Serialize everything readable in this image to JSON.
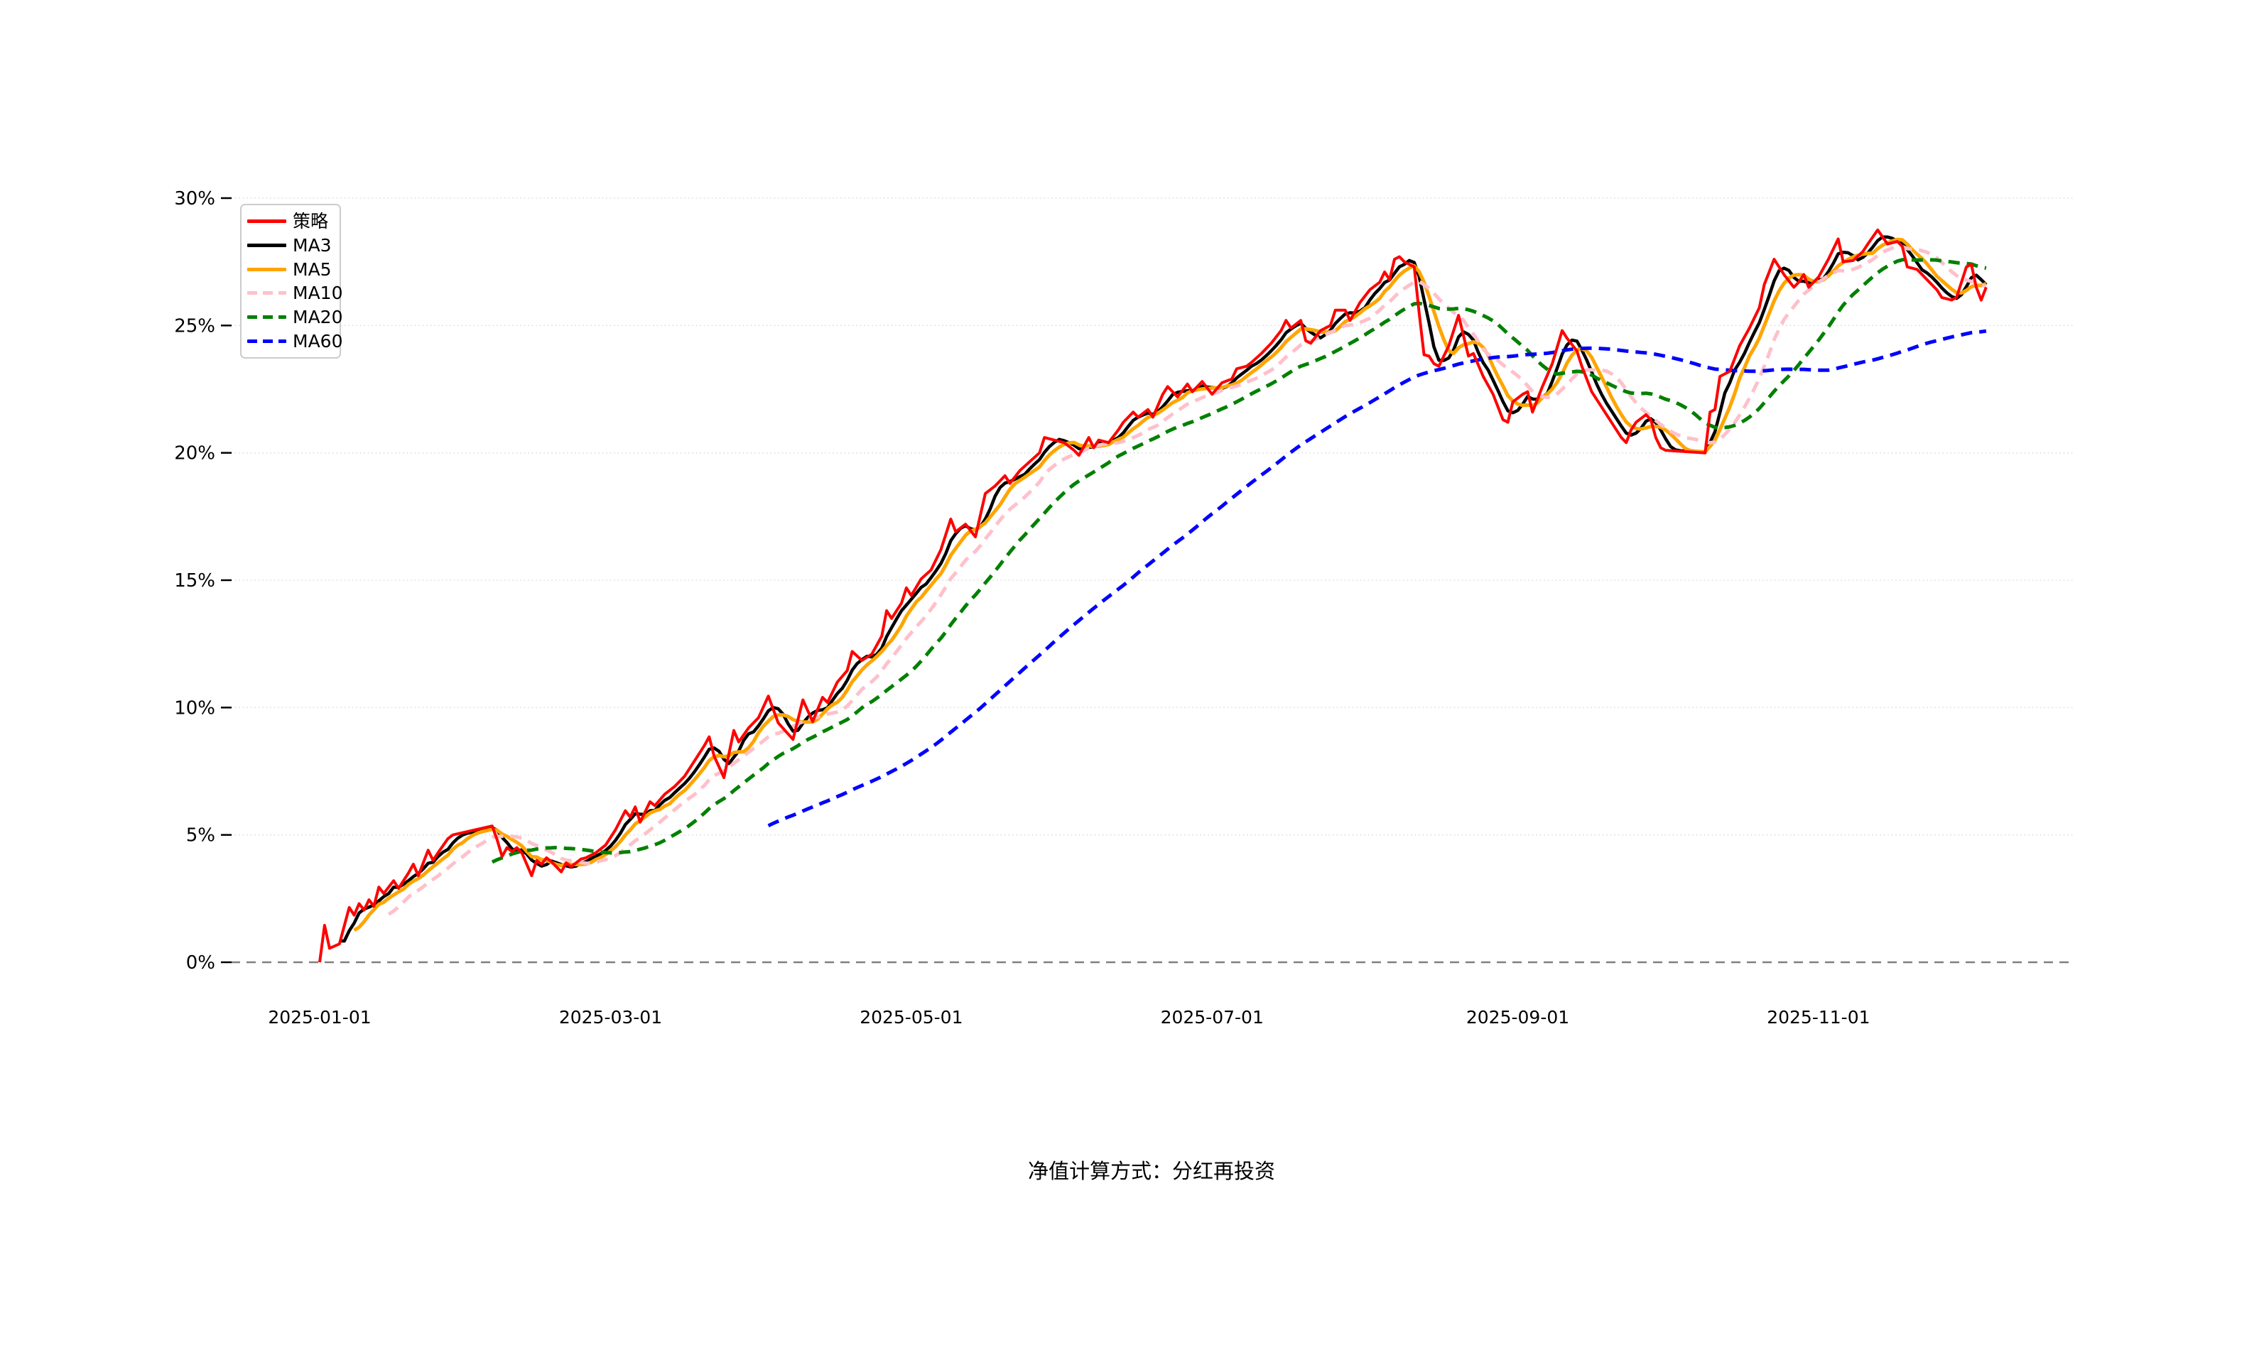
{
  "chart": {
    "caption": "净值计算方式：分红再投资",
    "background": "#ffffff",
    "grid_color": "#e3e3e3",
    "zero_line_color": "#808080",
    "tick_color": "#000000",
    "legend": [
      {
        "label": "策略",
        "color": "#ff0000",
        "dash": "solid"
      },
      {
        "label": "MA3",
        "color": "#000000",
        "dash": "solid"
      },
      {
        "label": "MA5",
        "color": "#ffa500",
        "dash": "solid"
      },
      {
        "label": "MA10",
        "color": "#ffc0cb",
        "dash": "dashed"
      },
      {
        "label": "MA20",
        "color": "#008000",
        "dash": "dashed"
      },
      {
        "label": "MA60",
        "color": "#0000ff",
        "dash": "dashed"
      }
    ],
    "chart_data": {
      "type": "line",
      "title": "",
      "xlabel": "",
      "ylabel": "",
      "grid": true,
      "legend_position": "upper-left",
      "x_axis": {
        "start_date": "2025-01-01",
        "tick_labels": [
          "2025-01-01",
          "2025-03-01",
          "2025-05-01",
          "2025-07-01",
          "2025-09-01",
          "2025-11-01"
        ],
        "tick_day_offsets": [
          0,
          59,
          120,
          181,
          243,
          304
        ],
        "last_day_offset": 338
      },
      "y_axis": {
        "tick_labels": [
          "0%",
          "5%",
          "10%",
          "15%",
          "20%",
          "25%",
          "30%"
        ],
        "tick_values": [
          0,
          5,
          10,
          15,
          20,
          25,
          30
        ],
        "range": [
          0,
          30
        ],
        "unit": "percent"
      },
      "series": [
        {
          "name": "策略",
          "color": "#ff0000",
          "style": "solid",
          "width": 4,
          "kind": "raw",
          "points_day_value": [
            [
              0,
              0
            ],
            [
              1,
              1.45
            ],
            [
              2,
              0.55
            ],
            [
              4,
              0.72
            ],
            [
              6,
              2.15
            ],
            [
              7,
              1.85
            ],
            [
              8,
              2.3
            ],
            [
              9,
              2.05
            ],
            [
              10,
              2.45
            ],
            [
              11,
              2.2
            ],
            [
              12,
              2.95
            ],
            [
              13,
              2.7
            ],
            [
              15,
              3.2
            ],
            [
              16,
              2.9
            ],
            [
              18,
              3.5
            ],
            [
              19,
              3.85
            ],
            [
              20,
              3.4
            ],
            [
              22,
              4.4
            ],
            [
              23,
              4.0
            ],
            [
              24,
              4.3
            ],
            [
              26,
              4.85
            ],
            [
              27,
              5.0
            ],
            [
              35,
              5.35
            ],
            [
              36,
              4.8
            ],
            [
              37,
              4.15
            ],
            [
              38,
              4.5
            ],
            [
              39,
              4.35
            ],
            [
              40,
              4.5
            ],
            [
              41,
              4.3
            ],
            [
              43,
              3.4
            ],
            [
              44,
              4.0
            ],
            [
              45,
              3.85
            ],
            [
              46,
              4.1
            ],
            [
              47,
              3.95
            ],
            [
              49,
              3.55
            ],
            [
              50,
              3.9
            ],
            [
              51,
              3.75
            ],
            [
              53,
              4.05
            ],
            [
              54,
              4.1
            ],
            [
              56,
              4.3
            ],
            [
              58,
              4.6
            ],
            [
              60,
              5.2
            ],
            [
              62,
              5.95
            ],
            [
              63,
              5.7
            ],
            [
              64,
              6.1
            ],
            [
              65,
              5.5
            ],
            [
              67,
              6.3
            ],
            [
              68,
              6.15
            ],
            [
              70,
              6.6
            ],
            [
              72,
              6.9
            ],
            [
              74,
              7.3
            ],
            [
              76,
              7.9
            ],
            [
              78,
              8.5
            ],
            [
              79,
              8.85
            ],
            [
              80,
              8.1
            ],
            [
              82,
              7.25
            ],
            [
              84,
              9.1
            ],
            [
              85,
              8.65
            ],
            [
              87,
              9.2
            ],
            [
              89,
              9.6
            ],
            [
              91,
              10.45
            ],
            [
              93,
              9.4
            ],
            [
              96,
              8.75
            ],
            [
              98,
              10.3
            ],
            [
              100,
              9.45
            ],
            [
              102,
              10.4
            ],
            [
              103,
              10.2
            ],
            [
              105,
              11.0
            ],
            [
              107,
              11.45
            ],
            [
              108,
              12.2
            ],
            [
              110,
              11.85
            ],
            [
              112,
              12.1
            ],
            [
              114,
              12.8
            ],
            [
              115,
              13.8
            ],
            [
              116,
              13.5
            ],
            [
              118,
              14.1
            ],
            [
              119,
              14.7
            ],
            [
              120,
              14.4
            ],
            [
              122,
              15.05
            ],
            [
              124,
              15.4
            ],
            [
              126,
              16.2
            ],
            [
              128,
              17.4
            ],
            [
              129,
              16.9
            ],
            [
              131,
              17.2
            ],
            [
              133,
              16.7
            ],
            [
              135,
              18.4
            ],
            [
              137,
              18.7
            ],
            [
              139,
              19.1
            ],
            [
              140,
              18.8
            ],
            [
              142,
              19.3
            ],
            [
              144,
              19.65
            ],
            [
              146,
              20.0
            ],
            [
              147,
              20.6
            ],
            [
              149,
              20.5
            ],
            [
              151,
              20.4
            ],
            [
              153,
              20.1
            ],
            [
              154,
              19.9
            ],
            [
              156,
              20.6
            ],
            [
              157,
              20.2
            ],
            [
              158,
              20.5
            ],
            [
              160,
              20.4
            ],
            [
              162,
              20.9
            ],
            [
              163,
              21.2
            ],
            [
              165,
              21.6
            ],
            [
              166,
              21.4
            ],
            [
              168,
              21.7
            ],
            [
              169,
              21.4
            ],
            [
              171,
              22.3
            ],
            [
              172,
              22.6
            ],
            [
              174,
              22.2
            ],
            [
              176,
              22.7
            ],
            [
              177,
              22.4
            ],
            [
              179,
              22.8
            ],
            [
              181,
              22.3
            ],
            [
              183,
              22.75
            ],
            [
              185,
              22.9
            ],
            [
              186,
              23.3
            ],
            [
              188,
              23.4
            ],
            [
              189,
              23.55
            ],
            [
              191,
              23.9
            ],
            [
              193,
              24.3
            ],
            [
              195,
              24.8
            ],
            [
              196,
              25.2
            ],
            [
              197,
              24.9
            ],
            [
              199,
              25.2
            ],
            [
              200,
              24.4
            ],
            [
              201,
              24.3
            ],
            [
              203,
              24.8
            ],
            [
              205,
              25.0
            ],
            [
              206,
              25.6
            ],
            [
              208,
              25.6
            ],
            [
              209,
              25.2
            ],
            [
              211,
              25.9
            ],
            [
              213,
              26.4
            ],
            [
              215,
              26.7
            ],
            [
              216,
              27.1
            ],
            [
              217,
              26.8
            ],
            [
              218,
              27.6
            ],
            [
              219,
              27.7
            ],
            [
              220,
              27.5
            ],
            [
              222,
              27.3
            ],
            [
              223,
              25.5
            ],
            [
              224,
              23.85
            ],
            [
              225,
              23.8
            ],
            [
              226,
              23.5
            ],
            [
              227,
              23.4
            ],
            [
              229,
              24.2
            ],
            [
              231,
              25.4
            ],
            [
              233,
              23.8
            ],
            [
              234,
              23.9
            ],
            [
              236,
              23.0
            ],
            [
              238,
              22.3
            ],
            [
              240,
              21.3
            ],
            [
              241,
              21.2
            ],
            [
              242,
              22.0
            ],
            [
              244,
              22.3
            ],
            [
              245,
              22.4
            ],
            [
              246,
              21.6
            ],
            [
              248,
              22.6
            ],
            [
              250,
              23.5
            ],
            [
              252,
              24.8
            ],
            [
              253,
              24.5
            ],
            [
              255,
              24.0
            ],
            [
              256,
              23.4
            ],
            [
              258,
              22.4
            ],
            [
              260,
              21.8
            ],
            [
              262,
              21.2
            ],
            [
              264,
              20.6
            ],
            [
              265,
              20.4
            ],
            [
              266,
              20.9
            ],
            [
              267,
              21.2
            ],
            [
              269,
              21.5
            ],
            [
              270,
              21.3
            ],
            [
              271,
              20.6
            ],
            [
              272,
              20.2
            ],
            [
              273,
              20.1
            ],
            [
              281,
              20.0
            ],
            [
              282,
              21.6
            ],
            [
              283,
              21.7
            ],
            [
              284,
              23.0
            ],
            [
              286,
              23.2
            ],
            [
              288,
              24.2
            ],
            [
              290,
              24.9
            ],
            [
              292,
              25.7
            ],
            [
              293,
              26.6
            ],
            [
              295,
              27.6
            ],
            [
              297,
              27.0
            ],
            [
              299,
              26.5
            ],
            [
              300,
              26.7
            ],
            [
              301,
              27.0
            ],
            [
              302,
              26.5
            ],
            [
              304,
              26.9
            ],
            [
              306,
              27.6
            ],
            [
              308,
              28.4
            ],
            [
              309,
              27.5
            ],
            [
              311,
              27.55
            ],
            [
              313,
              27.9
            ],
            [
              314,
              28.2
            ],
            [
              316,
              28.75
            ],
            [
              318,
              28.2
            ],
            [
              320,
              28.3
            ],
            [
              321,
              28.1
            ],
            [
              322,
              27.3
            ],
            [
              324,
              27.2
            ],
            [
              326,
              26.8
            ],
            [
              328,
              26.4
            ],
            [
              329,
              26.1
            ],
            [
              331,
              26.0
            ],
            [
              332,
              26.1
            ],
            [
              334,
              27.3
            ],
            [
              335,
              27.4
            ],
            [
              336,
              26.5
            ],
            [
              337,
              26.0
            ],
            [
              338,
              26.5
            ]
          ]
        },
        {
          "name": "MA3",
          "color": "#000000",
          "style": "solid",
          "width": 4.5,
          "kind": "moving_average",
          "window_days": 4,
          "draw_from_day": 4
        },
        {
          "name": "MA5",
          "color": "#ffa500",
          "style": "solid",
          "width": 5,
          "kind": "moving_average",
          "window_days": 7,
          "draw_from_day": 7
        },
        {
          "name": "MA10",
          "color": "#ffc0cb",
          "style": "dashed",
          "width": 5,
          "kind": "moving_average",
          "window_days": 14,
          "draw_from_day": 14
        },
        {
          "name": "MA20",
          "color": "#008000",
          "style": "dashed",
          "width": 5,
          "kind": "moving_average",
          "window_days": 28,
          "draw_from_day": 35
        },
        {
          "name": "MA60",
          "color": "#0000ff",
          "style": "dashed",
          "width": 5,
          "kind": "moving_average",
          "window_days": 84,
          "draw_from_day": 91
        }
      ]
    }
  }
}
